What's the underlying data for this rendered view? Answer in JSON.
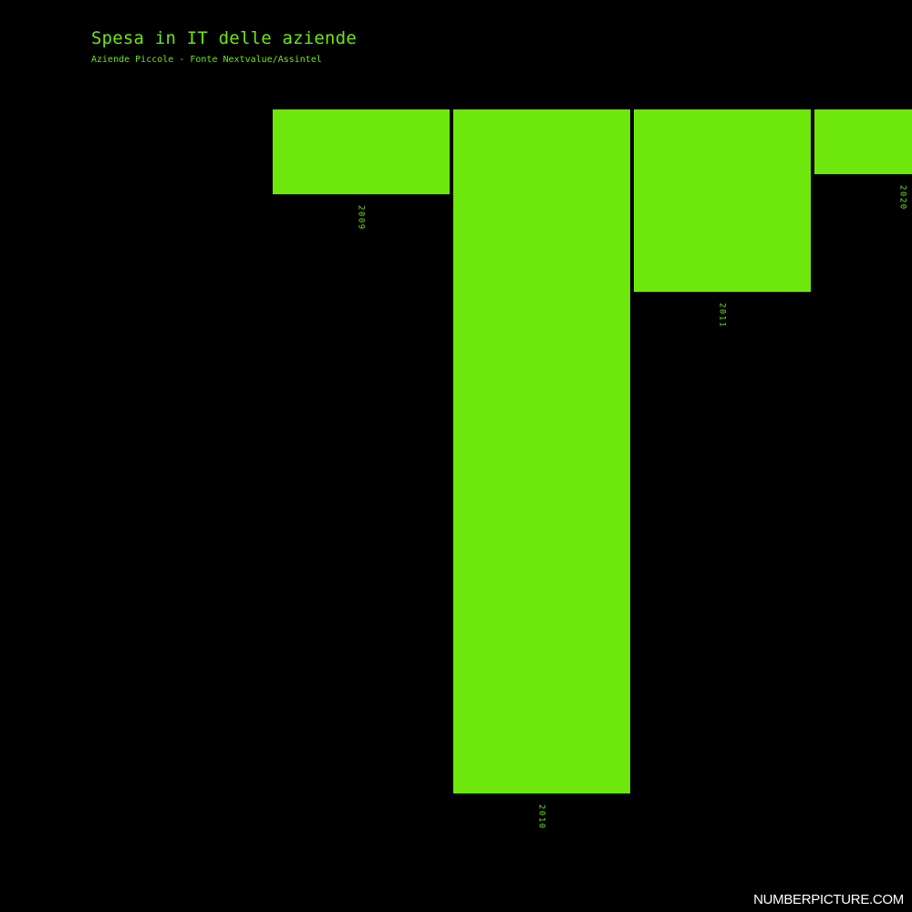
{
  "title": "Spesa in IT delle aziende",
  "subtitle": "Aziende Piccole - Fonte Nextvalue/Assintel",
  "watermark": "NUMBERPICTURE.COM",
  "colors": {
    "background": "#000000",
    "bar": "#6ee80c",
    "text": "#6ee80c",
    "watermark": "#ffffff"
  },
  "chart_data": {
    "type": "bar",
    "categories": [
      "2009",
      "2010",
      "2011",
      "2020"
    ],
    "values": [
      12.4,
      100,
      26.7,
      9.5
    ],
    "xlabel": "",
    "ylabel": "",
    "ylim": [
      0,
      100
    ],
    "grid": false,
    "legend": "none"
  }
}
